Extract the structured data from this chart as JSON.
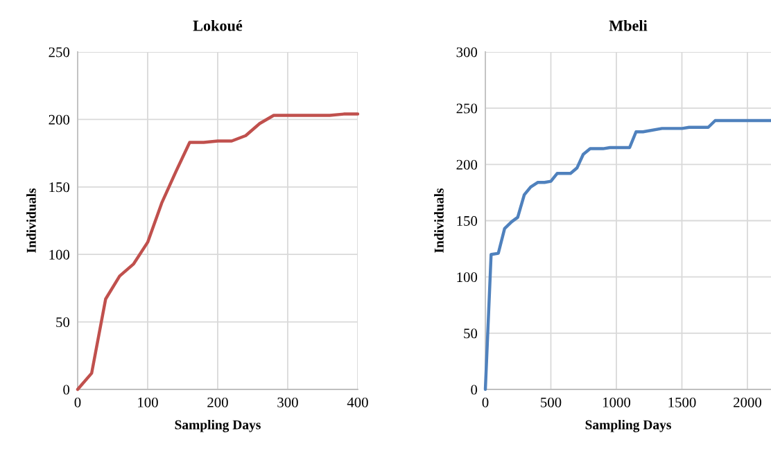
{
  "chart_data": [
    {
      "type": "line",
      "title": "Lokoué",
      "xlabel": "Sampling Days",
      "ylabel": "Individuals",
      "x": [
        0,
        20,
        40,
        60,
        80,
        100,
        120,
        140,
        160,
        180,
        200,
        220,
        240,
        260,
        280,
        300,
        320,
        340,
        360,
        380,
        400
      ],
      "series": [
        {
          "color": "#c0504d",
          "values": [
            0,
            12,
            67,
            84,
            93,
            109,
            138,
            161,
            183,
            183,
            184,
            184,
            188,
            197,
            203,
            203,
            203,
            203,
            203,
            204,
            204
          ]
        }
      ],
      "xlim": [
        0,
        400
      ],
      "xticks": [
        0,
        100,
        200,
        300,
        400
      ],
      "ylim": [
        0,
        250
      ],
      "yticks": [
        0,
        50,
        100,
        150,
        200,
        250
      ],
      "grid": true
    },
    {
      "type": "line",
      "title": "Mbeli",
      "xlabel": "Sampling Days",
      "ylabel": "Individuals",
      "x": [
        0,
        44,
        99,
        147,
        200,
        247,
        297,
        346,
        399,
        452,
        500,
        548,
        650,
        700,
        747,
        800,
        898,
        951,
        1101,
        1150,
        1203,
        1348,
        1502,
        1555,
        1701,
        1754,
        2180
      ],
      "series": [
        {
          "color": "#4f81bd",
          "values": [
            0,
            120,
            121,
            143,
            149,
            153,
            173,
            180,
            184,
            184,
            185,
            192,
            192,
            197,
            209,
            214,
            214,
            215,
            215,
            229,
            229,
            232,
            232,
            233,
            233,
            239,
            239
          ]
        }
      ],
      "xlim": [
        0,
        2180
      ],
      "xticks": [
        0,
        500,
        1000,
        1500,
        2000
      ],
      "ylim": [
        0,
        300
      ],
      "yticks": [
        0,
        50,
        100,
        150,
        200,
        250,
        300
      ],
      "grid": true
    }
  ]
}
